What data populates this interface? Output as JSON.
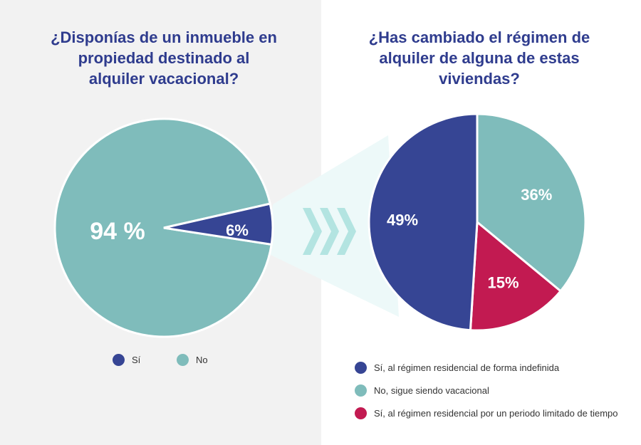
{
  "chart_data": [
    {
      "type": "pie",
      "title": "¿Disponías de un inmueble en\npropiedad destinado al\nalquiler vacacional?",
      "slices": [
        {
          "label": "Sí",
          "value": 6,
          "display": "6%",
          "color": "#364594"
        },
        {
          "label": "No",
          "value": 94,
          "display": "94 %",
          "color": "#7fbcbb"
        }
      ],
      "legend": "bottom"
    },
    {
      "type": "pie",
      "title": "¿Has cambiado el régimen de\nalquiler de alguna de estas\nviviendas?",
      "slices": [
        {
          "label": "No, sigue siendo vacacional",
          "value": 36,
          "display": "36%",
          "color": "#7fbcbb"
        },
        {
          "label": "Sí, al régimen residencial por un periodo limitado de tiempo",
          "value": 15,
          "display": "15%",
          "color": "#c21a51"
        },
        {
          "label": "Sí, al régimen residencial de forma indefinida",
          "value": 49,
          "display": "49%",
          "color": "#364594"
        }
      ],
      "legend_order": [
        2,
        0,
        1
      ],
      "legend": "bottom"
    }
  ],
  "decor": {
    "arrows": "chevron-right-icon x3",
    "background_left": "#f2f2f2",
    "funnel": "#edf9f9"
  }
}
